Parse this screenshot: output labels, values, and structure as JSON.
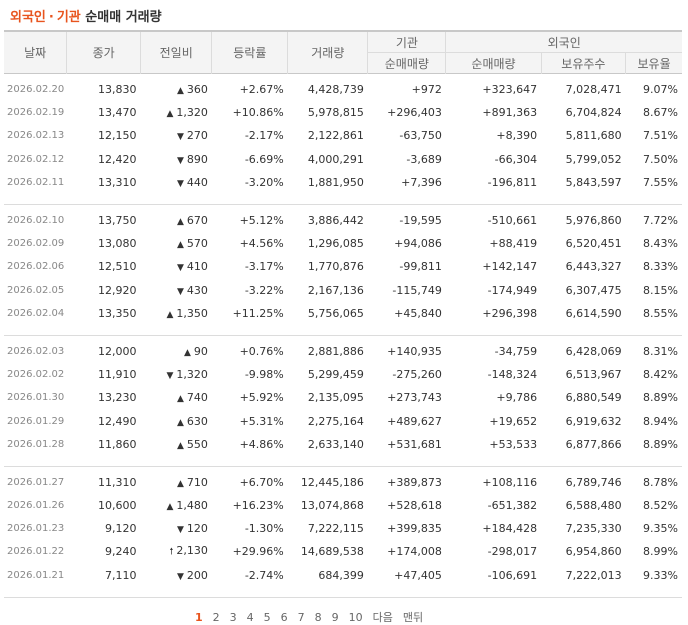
{
  "title": {
    "part1": "외국인",
    "sep": "·",
    "part2": "기관",
    "rest": "순매매 거래량"
  },
  "headers": {
    "date": "날짜",
    "close": "종가",
    "change": "전일비",
    "rate": "등락률",
    "volume": "거래량",
    "inst_group": "기관",
    "inst_net": "순매매량",
    "foreign_group": "외국인",
    "foreign_net": "순매매량",
    "foreign_hold": "보유주수",
    "foreign_ratio": "보유율"
  },
  "groups": [
    [
      {
        "date": "2026.02.20",
        "close": "13,830",
        "dir": "up",
        "change": "360",
        "rate": "+2.67%",
        "volume": "4,428,739",
        "inst": "+972",
        "foreign": "+323,647",
        "hold": "7,028,471",
        "ratio": "9.07%"
      },
      {
        "date": "2026.02.19",
        "close": "13,470",
        "dir": "up",
        "change": "1,320",
        "rate": "+10.86%",
        "volume": "5,978,815",
        "inst": "+296,403",
        "foreign": "+891,363",
        "hold": "6,704,824",
        "ratio": "8.67%"
      },
      {
        "date": "2026.02.13",
        "close": "12,150",
        "dir": "down",
        "change": "270",
        "rate": "-2.17%",
        "volume": "2,122,861",
        "inst": "-63,750",
        "foreign": "+8,390",
        "hold": "5,811,680",
        "ratio": "7.51%"
      },
      {
        "date": "2026.02.12",
        "close": "12,420",
        "dir": "down",
        "change": "890",
        "rate": "-6.69%",
        "volume": "4,000,291",
        "inst": "-3,689",
        "foreign": "-66,304",
        "hold": "5,799,052",
        "ratio": "7.50%"
      },
      {
        "date": "2026.02.11",
        "close": "13,310",
        "dir": "down",
        "change": "440",
        "rate": "-3.20%",
        "volume": "1,881,950",
        "inst": "+7,396",
        "foreign": "-196,811",
        "hold": "5,843,597",
        "ratio": "7.55%"
      }
    ],
    [
      {
        "date": "2026.02.10",
        "close": "13,750",
        "dir": "up",
        "change": "670",
        "rate": "+5.12%",
        "volume": "3,886,442",
        "inst": "-19,595",
        "foreign": "-510,661",
        "hold": "5,976,860",
        "ratio": "7.72%"
      },
      {
        "date": "2026.02.09",
        "close": "13,080",
        "dir": "up",
        "change": "570",
        "rate": "+4.56%",
        "volume": "1,296,085",
        "inst": "+94,086",
        "foreign": "+88,419",
        "hold": "6,520,451",
        "ratio": "8.43%"
      },
      {
        "date": "2026.02.06",
        "close": "12,510",
        "dir": "down",
        "change": "410",
        "rate": "-3.17%",
        "volume": "1,770,876",
        "inst": "-99,811",
        "foreign": "+142,147",
        "hold": "6,443,327",
        "ratio": "8.33%"
      },
      {
        "date": "2026.02.05",
        "close": "12,920",
        "dir": "down",
        "change": "430",
        "rate": "-3.22%",
        "volume": "2,167,136",
        "inst": "-115,749",
        "foreign": "-174,949",
        "hold": "6,307,475",
        "ratio": "8.15%"
      },
      {
        "date": "2026.02.04",
        "close": "13,350",
        "dir": "up",
        "change": "1,350",
        "rate": "+11.25%",
        "volume": "5,756,065",
        "inst": "+45,840",
        "foreign": "+296,398",
        "hold": "6,614,590",
        "ratio": "8.55%"
      }
    ],
    [
      {
        "date": "2026.02.03",
        "close": "12,000",
        "dir": "up",
        "change": "90",
        "rate": "+0.76%",
        "volume": "2,881,886",
        "inst": "+140,935",
        "foreign": "-34,759",
        "hold": "6,428,069",
        "ratio": "8.31%"
      },
      {
        "date": "2026.02.02",
        "close": "11,910",
        "dir": "down",
        "change": "1,320",
        "rate": "-9.98%",
        "volume": "5,299,459",
        "inst": "-275,260",
        "foreign": "-148,324",
        "hold": "6,513,967",
        "ratio": "8.42%"
      },
      {
        "date": "2026.01.30",
        "close": "13,230",
        "dir": "up",
        "change": "740",
        "rate": "+5.92%",
        "volume": "2,135,095",
        "inst": "+273,743",
        "foreign": "+9,786",
        "hold": "6,880,549",
        "ratio": "8.89%"
      },
      {
        "date": "2026.01.29",
        "close": "12,490",
        "dir": "up",
        "change": "630",
        "rate": "+5.31%",
        "volume": "2,275,164",
        "inst": "+489,627",
        "foreign": "+19,652",
        "hold": "6,919,632",
        "ratio": "8.94%"
      },
      {
        "date": "2026.01.28",
        "close": "11,860",
        "dir": "up",
        "change": "550",
        "rate": "+4.86%",
        "volume": "2,633,140",
        "inst": "+531,681",
        "foreign": "+53,533",
        "hold": "6,877,866",
        "ratio": "8.89%"
      }
    ],
    [
      {
        "date": "2026.01.27",
        "close": "11,310",
        "dir": "up",
        "change": "710",
        "rate": "+6.70%",
        "volume": "12,445,186",
        "inst": "+389,873",
        "foreign": "+108,116",
        "hold": "6,789,746",
        "ratio": "8.78%"
      },
      {
        "date": "2026.01.26",
        "close": "10,600",
        "dir": "up",
        "change": "1,480",
        "rate": "+16.23%",
        "volume": "13,074,868",
        "inst": "+528,618",
        "foreign": "-651,382",
        "hold": "6,588,480",
        "ratio": "8.52%"
      },
      {
        "date": "2026.01.23",
        "close": "9,120",
        "dir": "down",
        "change": "120",
        "rate": "-1.30%",
        "volume": "7,222,115",
        "inst": "+399,835",
        "foreign": "+184,428",
        "hold": "7,235,330",
        "ratio": "9.35%"
      },
      {
        "date": "2026.01.22",
        "close": "9,240",
        "dir": "upper",
        "change": "2,130",
        "rate": "+29.96%",
        "volume": "14,689,538",
        "inst": "+174,008",
        "foreign": "-298,017",
        "hold": "6,954,860",
        "ratio": "8.99%"
      },
      {
        "date": "2026.01.21",
        "close": "7,110",
        "dir": "down",
        "change": "200",
        "rate": "-2.74%",
        "volume": "684,399",
        "inst": "+47,405",
        "foreign": "-106,691",
        "hold": "7,222,013",
        "ratio": "9.33%"
      }
    ]
  ],
  "arrows": {
    "up": "▲",
    "down": "▼",
    "upper": "🠕"
  },
  "pager": {
    "pages": [
      "1",
      "2",
      "3",
      "4",
      "5",
      "6",
      "7",
      "8",
      "9",
      "10"
    ],
    "current": "1",
    "next": "다음",
    "last": "맨뒤"
  }
}
